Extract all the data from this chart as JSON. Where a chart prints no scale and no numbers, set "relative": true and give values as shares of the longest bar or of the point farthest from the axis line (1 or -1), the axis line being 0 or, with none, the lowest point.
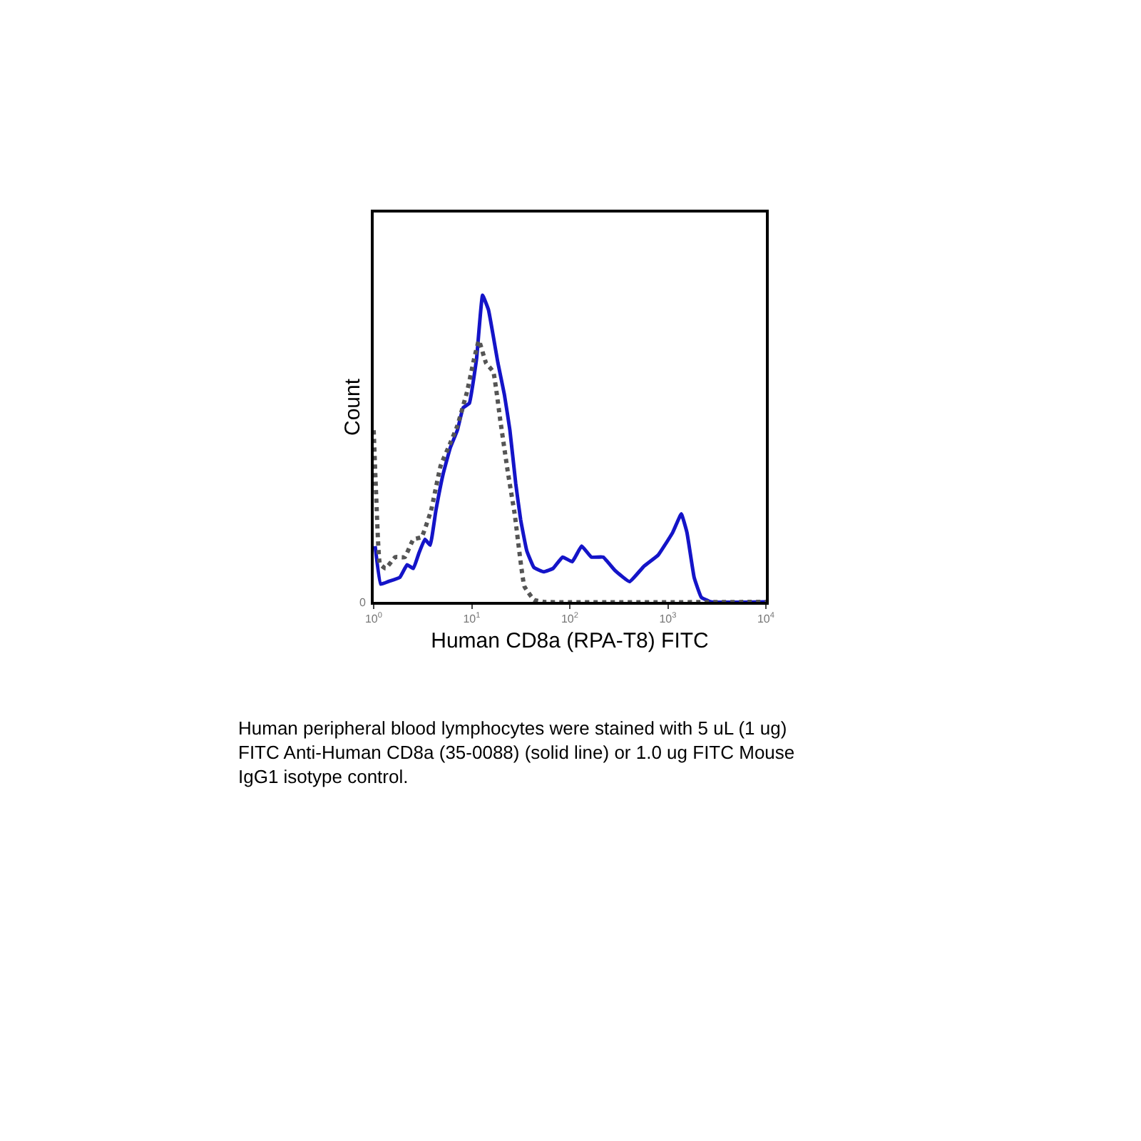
{
  "chart_data": {
    "type": "line",
    "relative": true,
    "xlabel": "Human CD8a (RPA-T8) FITC",
    "ylabel": "Count",
    "log": "x",
    "xlim": [
      1,
      10000
    ],
    "xticks": [
      {
        "value": 1,
        "label": "10$^{0}$"
      },
      {
        "value": 10,
        "label": "10$^{1}$"
      },
      {
        "value": 100,
        "label": "10$^{2}$"
      },
      {
        "value": 1000,
        "label": "10$^{3}$"
      },
      {
        "value": 10000,
        "label": "10$^{4}$"
      }
    ],
    "series": [
      {
        "color": "#1414c8",
        "line_style": "solid",
        "x": [
          1.035,
          1.18,
          1.4,
          1.85,
          2.19,
          2.54,
          2.9,
          3.33,
          3.77,
          4.31,
          5.09,
          6.03,
          7.14,
          8.17,
          9.46,
          11.2,
          12.9,
          14.8,
          16.6,
          18.5,
          21.5,
          24.5,
          28.1,
          31.5,
          36.4,
          43.1,
          54.0,
          67.5,
          84.5,
          106,
          132,
          166,
          219,
          290,
          407,
          570,
          798,
          1119,
          1371,
          1567,
          1854,
          2193,
          2748,
          10000
        ],
        "values": [
          0.182,
          0.058,
          0.066,
          0.08,
          0.121,
          0.109,
          0.16,
          0.204,
          0.185,
          0.298,
          0.415,
          0.502,
          0.56,
          0.633,
          0.648,
          0.793,
          1.0,
          0.953,
          0.866,
          0.779,
          0.677,
          0.56,
          0.386,
          0.269,
          0.167,
          0.112,
          0.098,
          0.109,
          0.146,
          0.131,
          0.182,
          0.146,
          0.146,
          0.102,
          0.066,
          0.116,
          0.153,
          0.226,
          0.287,
          0.226,
          0.08,
          0.015,
          0,
          0
        ]
      },
      {
        "color": "#555555",
        "line_style": "dotted",
        "x": [
          1,
          1.057,
          1.156,
          1.324,
          1.66,
          2.075,
          2.541,
          3.076,
          3.846,
          4.819,
          6.026,
          7.145,
          8.933,
          10.57,
          11.83,
          14.0,
          16.6,
          19.6,
          23.2,
          27.5,
          34.4,
          43.1,
          54.0,
          10000
        ],
        "values": [
          0.56,
          0.357,
          0.124,
          0.109,
          0.146,
          0.146,
          0.204,
          0.211,
          0.298,
          0.444,
          0.517,
          0.575,
          0.684,
          0.793,
          0.852,
          0.779,
          0.75,
          0.59,
          0.429,
          0.284,
          0.051,
          0.007,
          0,
          0
        ]
      }
    ],
    "annotations": [
      "0",
      "Human peripheral blood lymphocytes were stained with 5 uL (1 ug)\nFITC Anti-Human CD8a (35-0088) (solid line) or 1.0 ug FITC Mouse\nIgG1 isotype control."
    ]
  }
}
